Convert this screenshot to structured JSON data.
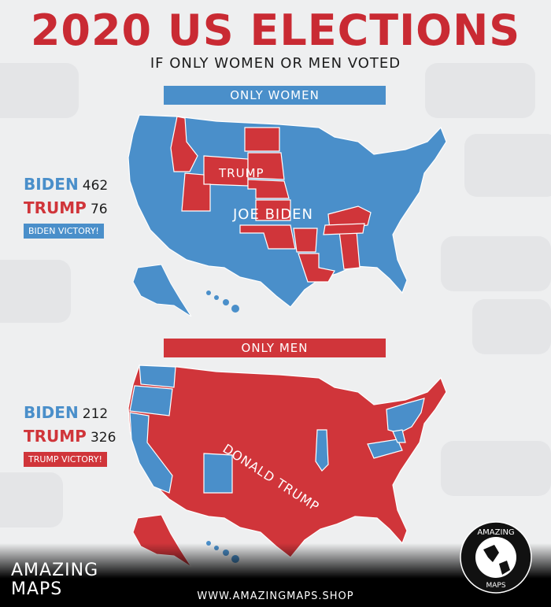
{
  "title": "2020 US ELECTIONS",
  "subtitle": "IF ONLY WOMEN OR MEN VOTED",
  "colors": {
    "democrat": "#4a8fca",
    "republican": "#d0353a",
    "title": "#c92a33"
  },
  "women": {
    "banner": "ONLY WOMEN",
    "biden_label": "BIDEN",
    "biden_votes": "462",
    "trump_label": "TRUMP",
    "trump_votes": "76",
    "result": "BIDEN VICTORY!",
    "map_label_trump": "TRUMP",
    "map_label_biden": "JOE BIDEN"
  },
  "men": {
    "banner": "ONLY MEN",
    "biden_label": "BIDEN",
    "biden_votes": "212",
    "trump_label": "TRUMP",
    "trump_votes": "326",
    "result": "TRUMP VICTORY!",
    "map_label": "DONALD TRUMP"
  },
  "brand": {
    "line1": "AMAZING",
    "line2": "MAPS",
    "logo_top": "AMAZING",
    "logo_bottom": "MAPS"
  },
  "url": "WWW.AMAZINGMAPS.SHOP"
}
